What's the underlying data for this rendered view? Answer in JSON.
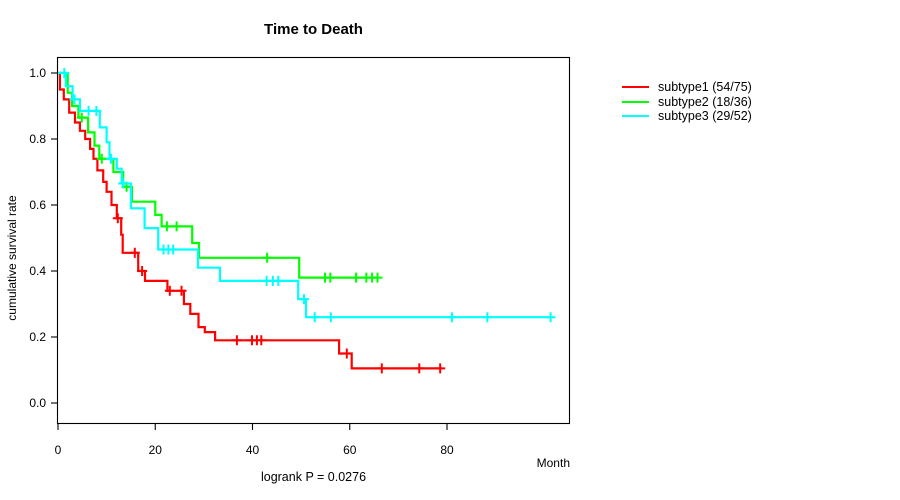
{
  "chart_data": {
    "type": "line",
    "subtype": "kaplan-meier-step-survival",
    "title": "Time to Death",
    "xlabel": "Month",
    "ylabel": "cumulative survival rate",
    "annotation": "logrank P = 0.0276",
    "xlim": [
      0,
      105
    ],
    "ylim": [
      0,
      1.0
    ],
    "x_ticks": [
      0,
      20,
      40,
      60,
      80
    ],
    "y_ticks": [
      "0.0",
      "0.2",
      "0.4",
      "0.6",
      "0.8",
      "1.0"
    ],
    "grid": false,
    "legend_position": "right-outside",
    "series": [
      {
        "name": "subtype1",
        "legend_label": "subtype1 (54/75)",
        "color": "#ff0000",
        "events": 54,
        "n": 75,
        "points": [
          [
            0,
            1.0
          ],
          [
            0.4,
            0.95
          ],
          [
            1.2,
            0.92
          ],
          [
            2.3,
            0.88
          ],
          [
            3.5,
            0.85
          ],
          [
            4.5,
            0.825
          ],
          [
            5.6,
            0.8
          ],
          [
            6.6,
            0.77
          ],
          [
            7.3,
            0.74
          ],
          [
            8.1,
            0.705
          ],
          [
            9.3,
            0.67
          ],
          [
            10,
            0.64
          ],
          [
            11,
            0.6
          ],
          [
            12.1,
            0.56
          ],
          [
            13,
            0.51
          ],
          [
            13.3,
            0.455
          ],
          [
            16.5,
            0.4
          ],
          [
            17.9,
            0.37
          ],
          [
            22.5,
            0.34
          ],
          [
            25.9,
            0.3
          ],
          [
            27.2,
            0.27
          ],
          [
            28.9,
            0.23
          ],
          [
            30.2,
            0.215
          ],
          [
            32.3,
            0.19
          ],
          [
            57.8,
            0.15
          ],
          [
            60.4,
            0.105
          ]
        ],
        "censor_marks": [
          [
            12.3,
            0.56
          ],
          [
            15.8,
            0.455
          ],
          [
            17.3,
            0.4
          ],
          [
            23,
            0.34
          ],
          [
            25.4,
            0.34
          ],
          [
            36.8,
            0.19
          ],
          [
            39.9,
            0.19
          ],
          [
            40.9,
            0.19
          ],
          [
            41.8,
            0.19
          ],
          [
            59.4,
            0.15
          ],
          [
            66.6,
            0.105
          ],
          [
            74.3,
            0.105
          ],
          [
            78.6,
            0.105
          ]
        ],
        "end_time": 79
      },
      {
        "name": "subtype2",
        "legend_label": "subtype2 (18/36)",
        "color": "#00ff00",
        "events": 18,
        "n": 36,
        "points": [
          [
            0,
            1.0
          ],
          [
            2,
            0.94
          ],
          [
            2.9,
            0.9
          ],
          [
            4.2,
            0.865
          ],
          [
            6.2,
            0.82
          ],
          [
            7.5,
            0.78
          ],
          [
            8.5,
            0.74
          ],
          [
            11.4,
            0.7
          ],
          [
            13.4,
            0.655
          ],
          [
            15.2,
            0.61
          ],
          [
            20,
            0.57
          ],
          [
            21.3,
            0.535
          ],
          [
            27.6,
            0.485
          ],
          [
            29,
            0.44
          ],
          [
            49.6,
            0.38
          ]
        ],
        "censor_marks": [
          [
            4.9,
            0.865
          ],
          [
            9,
            0.74
          ],
          [
            14.1,
            0.655
          ],
          [
            22.4,
            0.535
          ],
          [
            24.4,
            0.535
          ],
          [
            43,
            0.44
          ],
          [
            54.9,
            0.38
          ],
          [
            56,
            0.38
          ],
          [
            61.3,
            0.38
          ],
          [
            63.4,
            0.38
          ],
          [
            64.6,
            0.38
          ],
          [
            65.7,
            0.38
          ]
        ],
        "end_time": 66
      },
      {
        "name": "subtype3",
        "legend_label": "subtype3 (29/52)",
        "color": "#00ffff",
        "events": 29,
        "n": 52,
        "points": [
          [
            0,
            1.0
          ],
          [
            1.6,
            0.96
          ],
          [
            3,
            0.92
          ],
          [
            4.5,
            0.885
          ],
          [
            8.6,
            0.835
          ],
          [
            10,
            0.79
          ],
          [
            10.6,
            0.74
          ],
          [
            12.1,
            0.71
          ],
          [
            13.1,
            0.665
          ],
          [
            15,
            0.59
          ],
          [
            17.8,
            0.53
          ],
          [
            20.6,
            0.465
          ],
          [
            28.8,
            0.41
          ],
          [
            33.3,
            0.37
          ],
          [
            49.4,
            0.315
          ],
          [
            51,
            0.26
          ]
        ],
        "censor_marks": [
          [
            1.3,
            1.0
          ],
          [
            3.4,
            0.92
          ],
          [
            6.3,
            0.885
          ],
          [
            7.9,
            0.885
          ],
          [
            10.9,
            0.74
          ],
          [
            13.4,
            0.665
          ],
          [
            21.7,
            0.465
          ],
          [
            22.7,
            0.465
          ],
          [
            23.7,
            0.465
          ],
          [
            42.9,
            0.37
          ],
          [
            44.2,
            0.37
          ],
          [
            45.3,
            0.37
          ],
          [
            50.6,
            0.315
          ],
          [
            52.8,
            0.26
          ],
          [
            56.1,
            0.26
          ],
          [
            81,
            0.26
          ],
          [
            88.3,
            0.26
          ],
          [
            101.3,
            0.26
          ]
        ],
        "end_time": 101.4
      }
    ]
  }
}
